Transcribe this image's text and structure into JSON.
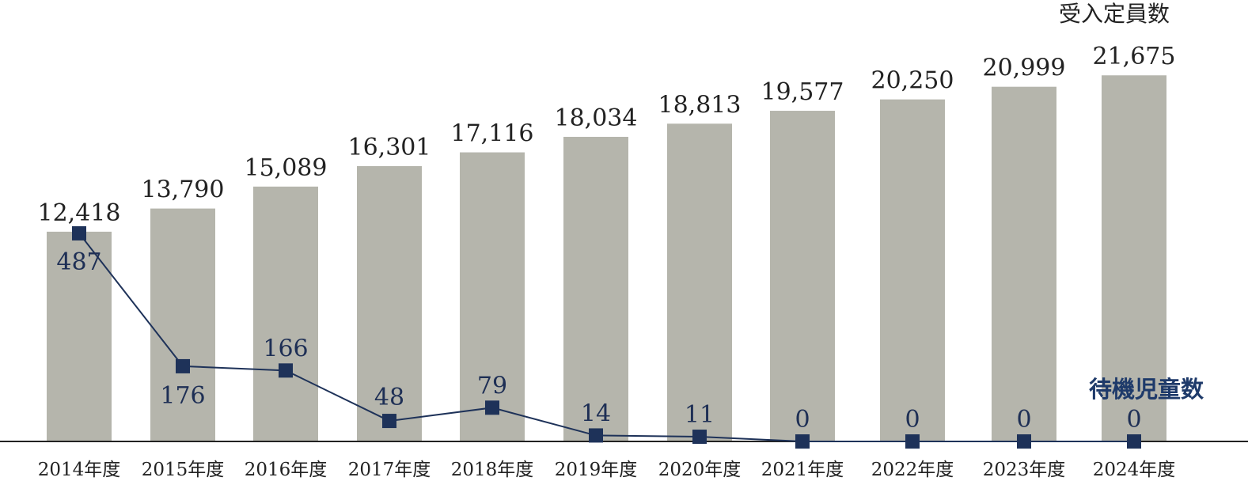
{
  "chart_data": {
    "type": "bar",
    "categories": [
      "2014年度",
      "2015年度",
      "2016年度",
      "2017年度",
      "2018年度",
      "2019年度",
      "2020年度",
      "2021年度",
      "2022年度",
      "2023年度",
      "2024年度"
    ],
    "series": [
      {
        "name": "受入定員数",
        "kind": "bar",
        "values": [
          12418,
          13790,
          15089,
          16301,
          17116,
          18034,
          18813,
          19577,
          20250,
          20999,
          21675
        ],
        "labels": [
          "12,418",
          "13,790",
          "15,089",
          "16,301",
          "17,116",
          "18,034",
          "18,813",
          "19,577",
          "20,250",
          "20,999",
          "21,675"
        ]
      },
      {
        "name": "待機児童数",
        "kind": "line",
        "values": [
          487,
          176,
          166,
          48,
          79,
          14,
          11,
          0,
          0,
          0,
          0
        ],
        "labels": [
          "487",
          "176",
          "166",
          "48",
          "79",
          "14",
          "11",
          "0",
          "0",
          "0",
          "0"
        ]
      }
    ],
    "bar_color": "#b5b5ac",
    "line_color": "#1e3259",
    "title_line_color": "#1e3a6a"
  }
}
